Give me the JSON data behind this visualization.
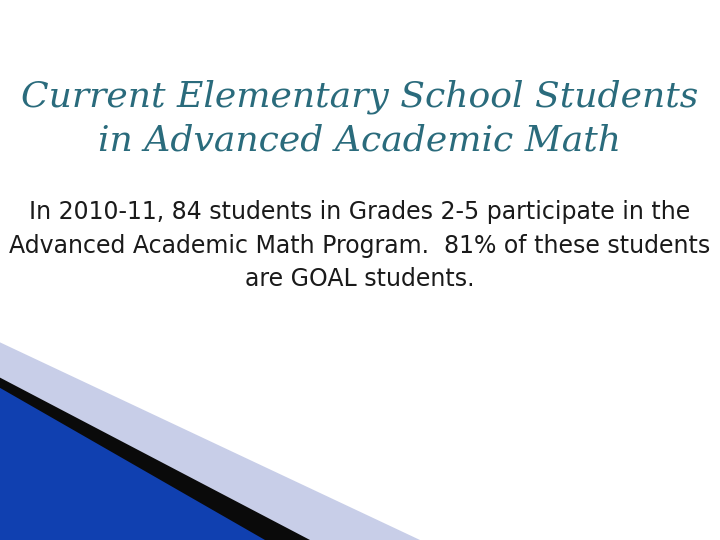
{
  "title_line1": "Current Elementary School Students",
  "title_line2": "in Advanced Academic Math",
  "title_color": "#2a6b7c",
  "body_text": "In 2010-11, 84 students in Grades 2-5 participate in the\nAdvanced Academic Math Program.  81% of these students\nare GOAL students.",
  "body_text_color": "#1a1a1a",
  "background_color": "#ffffff",
  "title_fontsize": 26,
  "body_fontsize": 17,
  "decoration_blue": "#1040b0",
  "decoration_light": "#c8cee8",
  "decoration_black": "#0a0a0a"
}
